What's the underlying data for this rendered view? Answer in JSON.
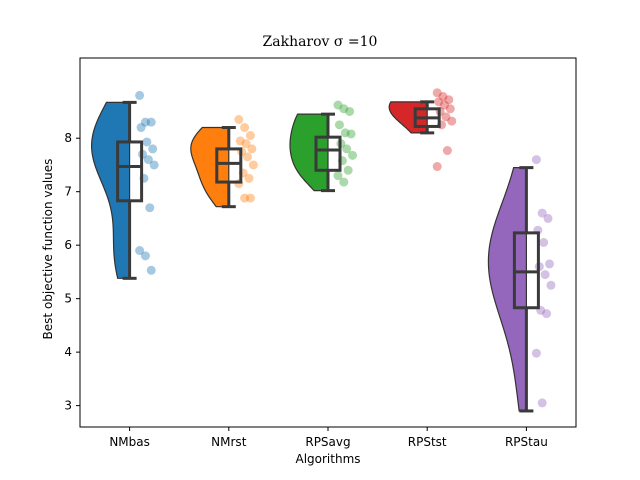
{
  "chart_data": {
    "type": "raincloud",
    "title": "Zakharov σ =10",
    "xlabel": "Algorithms",
    "ylabel": "Best objective function values",
    "ylim": [
      2.6,
      9.5
    ],
    "yticks": [
      3,
      4,
      5,
      6,
      7,
      8
    ],
    "grid": false,
    "categories": [
      "NMbas",
      "NMrst",
      "RPSavg",
      "RPStst",
      "RPStau"
    ],
    "colors": [
      "#1f77b4",
      "#ff7f0e",
      "#2ca02c",
      "#d62728",
      "#9467bd"
    ],
    "box": [
      {
        "min": 5.38,
        "q1": 6.83,
        "median": 7.47,
        "q3": 7.93,
        "max": 8.67
      },
      {
        "min": 6.72,
        "q1": 7.18,
        "median": 7.53,
        "q3": 7.8,
        "max": 8.2
      },
      {
        "min": 7.02,
        "q1": 7.4,
        "median": 7.78,
        "q3": 8.02,
        "max": 8.45
      },
      {
        "min": 8.1,
        "q1": 8.22,
        "median": 8.38,
        "q3": 8.55,
        "max": 8.68
      },
      {
        "min": 2.9,
        "q1": 4.83,
        "median": 5.5,
        "q3": 6.23,
        "max": 7.45
      }
    ],
    "points": [
      [
        8.8,
        8.3,
        8.3,
        8.2,
        7.93,
        7.8,
        7.7,
        7.6,
        7.5,
        7.25,
        6.7,
        5.9,
        5.8,
        5.53
      ],
      [
        8.35,
        8.2,
        8.05,
        7.95,
        7.9,
        7.8,
        7.75,
        7.65,
        7.5,
        7.35,
        7.25,
        7.15,
        6.88,
        6.88
      ],
      [
        8.62,
        8.55,
        8.5,
        8.25,
        8.1,
        8.08,
        7.9,
        7.8,
        7.68,
        7.58,
        7.4,
        7.3,
        7.18
      ],
      [
        8.85,
        8.78,
        8.72,
        8.68,
        8.62,
        8.55,
        8.5,
        8.4,
        8.32,
        8.25,
        7.77,
        7.47
      ],
      [
        7.6,
        6.6,
        6.5,
        6.28,
        6.05,
        5.65,
        5.6,
        5.45,
        5.25,
        4.78,
        4.72,
        3.98,
        3.05
      ]
    ]
  }
}
